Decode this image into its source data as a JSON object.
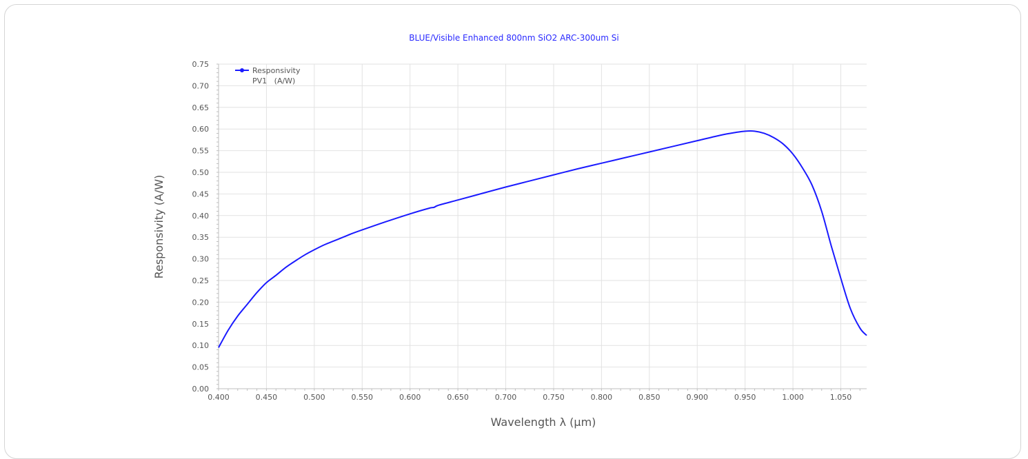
{
  "chart_data": {
    "type": "line",
    "title": "BLUE/Visible Enhanced 800nm SiO2 ARC-300um Si",
    "xlabel": "Wavelength λ (µm)",
    "ylabel": "Responsivity (A/W)",
    "xlim": [
      0.4,
      1.077
    ],
    "ylim": [
      0,
      0.75
    ],
    "x_ticks": [
      "0.400",
      "0.450",
      "0.500",
      "0.550",
      "0.600",
      "0.650",
      "0.700",
      "0.750",
      "0.800",
      "0.850",
      "0.900",
      "0.950",
      "1.000",
      "1.050"
    ],
    "y_ticks": [
      "0.00",
      "0.05",
      "0.10",
      "0.15",
      "0.20",
      "0.25",
      "0.30",
      "0.35",
      "0.40",
      "0.45",
      "0.50",
      "0.55",
      "0.60",
      "0.65",
      "0.70",
      "0.75"
    ],
    "grid": true,
    "legend_position": "top-left",
    "legend": {
      "line1": "Responsivity",
      "line2": "PV1   (A/W)"
    },
    "series": [
      {
        "name": "Responsivity PV1 (A/W)",
        "color": "#1a1aff",
        "x": [
          0.4,
          0.41,
          0.42,
          0.43,
          0.44,
          0.45,
          0.46,
          0.47,
          0.48,
          0.49,
          0.5,
          0.51,
          0.52,
          0.53,
          0.54,
          0.55,
          0.575,
          0.6,
          0.62,
          0.625,
          0.63,
          0.65,
          0.675,
          0.7,
          0.725,
          0.75,
          0.775,
          0.8,
          0.825,
          0.85,
          0.875,
          0.9,
          0.925,
          0.94,
          0.95,
          0.96,
          0.97,
          0.98,
          0.99,
          1.0,
          1.01,
          1.02,
          1.03,
          1.04,
          1.05,
          1.06,
          1.07,
          1.077
        ],
        "y": [
          0.095,
          0.135,
          0.168,
          0.195,
          0.222,
          0.245,
          0.262,
          0.28,
          0.295,
          0.309,
          0.321,
          0.332,
          0.341,
          0.35,
          0.359,
          0.367,
          0.386,
          0.404,
          0.417,
          0.419,
          0.424,
          0.436,
          0.451,
          0.466,
          0.48,
          0.494,
          0.508,
          0.521,
          0.534,
          0.547,
          0.56,
          0.573,
          0.586,
          0.592,
          0.595,
          0.595,
          0.59,
          0.58,
          0.565,
          0.542,
          0.51,
          0.47,
          0.41,
          0.33,
          0.255,
          0.185,
          0.14,
          0.123
        ]
      }
    ]
  }
}
